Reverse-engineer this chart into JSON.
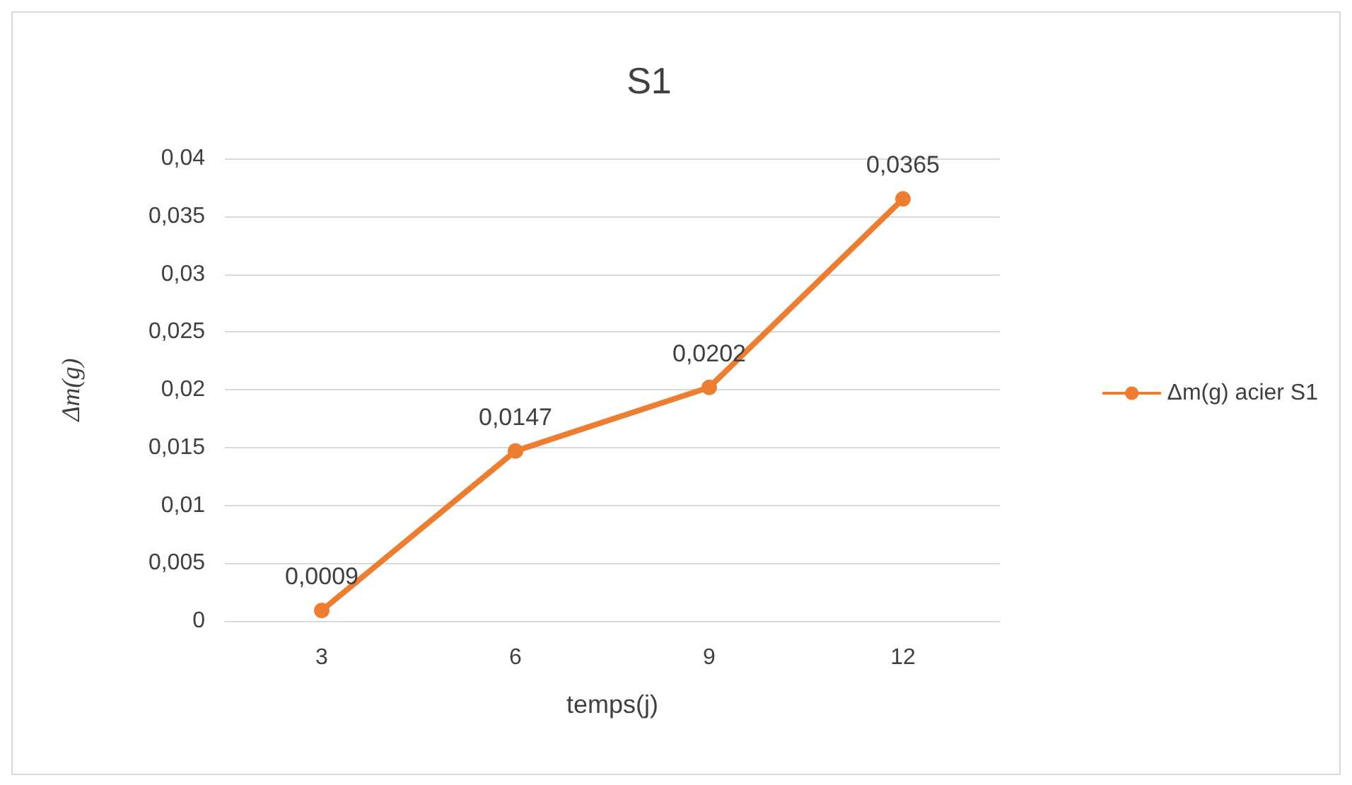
{
  "chart_data": {
    "type": "line",
    "title": "S1",
    "xlabel": "temps(j)",
    "ylabel": "Δm(g)",
    "categories": [
      "3",
      "6",
      "9",
      "12"
    ],
    "series": [
      {
        "name": "Δm(g) acier S1",
        "color": "#ed7d31",
        "values": [
          0.0009,
          0.0147,
          0.0202,
          0.0365
        ],
        "value_labels": [
          "0,0009",
          "0,0147",
          "0,0202",
          "0,0365"
        ]
      }
    ],
    "ylim": [
      0,
      0.04
    ],
    "yticks": [
      0,
      {
        "value": 0.005,
        "label": "0,005"
      },
      {
        "value": 0.01,
        "label": "0,01"
      },
      {
        "value": 0.015,
        "label": "0,015"
      },
      {
        "value": 0.02,
        "label": "0,02"
      },
      {
        "value": 0.025,
        "label": "0,025"
      },
      {
        "value": 0.03,
        "label": "0,03"
      },
      {
        "value": 0.035,
        "label": "0,035"
      },
      {
        "value": 0.04,
        "label": "0,04"
      }
    ],
    "grid": "y",
    "legend": "right",
    "marker": "circle",
    "line_style": "solid"
  }
}
